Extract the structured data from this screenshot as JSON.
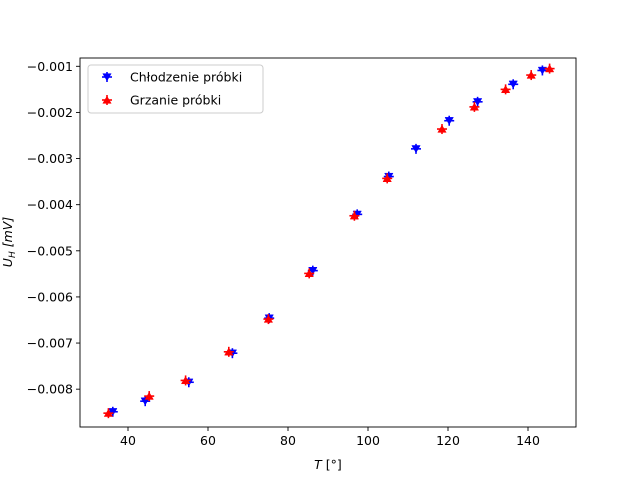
{
  "chart_data": {
    "type": "scatter",
    "xlabel_main": "T",
    "xlabel_unit": "[°]",
    "ylabel_main": "U",
    "ylabel_sub": "H",
    "ylabel_unit": "[mV]",
    "xlim": [
      28,
      152
    ],
    "ylim": [
      -0.00882,
      -0.00082
    ],
    "xticks": [
      40,
      60,
      80,
      100,
      120,
      140
    ],
    "xtick_labels": [
      "40",
      "60",
      "80",
      "100",
      "120",
      "140"
    ],
    "yticks": [
      -0.001,
      -0.002,
      -0.003,
      -0.004,
      -0.005,
      -0.006,
      -0.007,
      -0.008
    ],
    "ytick_labels": [
      "−0.001",
      "−0.002",
      "−0.003",
      "−0.004",
      "−0.005",
      "−0.006",
      "−0.007",
      "−0.008"
    ],
    "grid": false,
    "legend_placement": "top-left",
    "series": [
      {
        "name": "Chłodzenie próbki",
        "color": "#0000ff",
        "marker": "triangle-down",
        "x": [
          36.2,
          44.3,
          55.2,
          66.1,
          75.3,
          86.2,
          97.3,
          105.2,
          112.0,
          120.3,
          127.4,
          136.3,
          143.6
        ],
        "y": [
          -0.00849,
          -0.00826,
          -0.00785,
          -0.00722,
          -0.00646,
          -0.00543,
          -0.00421,
          -0.00339,
          -0.00279,
          -0.00218,
          -0.00177,
          -0.00139,
          -0.00109
        ]
      },
      {
        "name": "Grzanie próbki",
        "color": "#ff0000",
        "marker": "triangle-up",
        "x": [
          35.1,
          45.3,
          54.4,
          65.2,
          75.1,
          85.3,
          96.6,
          104.8,
          118.5,
          126.6,
          134.4,
          140.8,
          145.4
        ],
        "y": [
          -0.00852,
          -0.00815,
          -0.00781,
          -0.00719,
          -0.00648,
          -0.00549,
          -0.00424,
          -0.00343,
          -0.00236,
          -0.00188,
          -0.0015,
          -0.00119,
          -0.00105
        ]
      }
    ]
  }
}
